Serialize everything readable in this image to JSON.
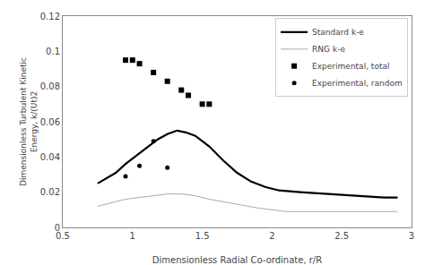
{
  "chart_data": {
    "type": "line",
    "xlabel": "Dimensionless Radial Co-ordinate, r/R",
    "ylabel": "Dimensionless Turbulent Kinetic\nEnergy, k/(Ut)2",
    "xlim": [
      0.5,
      3.0
    ],
    "ylim": [
      0,
      0.12
    ],
    "xticks": [
      0.5,
      1.0,
      1.5,
      2.0,
      2.5,
      3.0
    ],
    "yticks": [
      0,
      0.02,
      0.04,
      0.06,
      0.08,
      0.1,
      0.12
    ],
    "grid": false,
    "legend": "upper right",
    "series": [
      {
        "name": "Standard k-e",
        "type": "line",
        "line_style": "solid",
        "color": "#000000",
        "x": [
          0.75,
          0.82,
          0.88,
          0.95,
          1.0,
          1.05,
          1.1,
          1.18,
          1.25,
          1.32,
          1.38,
          1.45,
          1.55,
          1.65,
          1.75,
          1.85,
          1.95,
          2.05,
          2.2,
          2.4,
          2.6,
          2.8,
          2.9
        ],
        "values": [
          0.025,
          0.028,
          0.031,
          0.036,
          0.039,
          0.042,
          0.045,
          0.05,
          0.053,
          0.055,
          0.054,
          0.052,
          0.046,
          0.038,
          0.031,
          0.026,
          0.023,
          0.021,
          0.02,
          0.019,
          0.018,
          0.017,
          0.017
        ]
      },
      {
        "name": "RNG k-e",
        "type": "line",
        "line_style": "solid",
        "color": "#aaaaaa",
        "x": [
          0.75,
          0.85,
          0.95,
          1.05,
          1.15,
          1.25,
          1.35,
          1.45,
          1.55,
          1.7,
          1.9,
          2.1,
          2.3,
          2.5,
          2.7,
          2.9
        ],
        "values": [
          0.012,
          0.014,
          0.016,
          0.017,
          0.018,
          0.019,
          0.019,
          0.018,
          0.016,
          0.014,
          0.011,
          0.009,
          0.009,
          0.009,
          0.009,
          0.009
        ]
      },
      {
        "name": "Experimental, total",
        "type": "scatter",
        "marker": "square",
        "color": "#000000",
        "x": [
          0.95,
          1.0,
          1.05,
          1.15,
          1.25,
          1.35,
          1.4,
          1.5,
          1.55
        ],
        "values": [
          0.095,
          0.095,
          0.093,
          0.088,
          0.083,
          0.078,
          0.075,
          0.07,
          0.07
        ]
      },
      {
        "name": "Experimental, random",
        "type": "scatter",
        "marker": "circle",
        "color": "#000000",
        "x": [
          0.95,
          1.05,
          1.15,
          1.25
        ],
        "values": [
          0.029,
          0.035,
          0.049,
          0.034
        ]
      }
    ]
  }
}
